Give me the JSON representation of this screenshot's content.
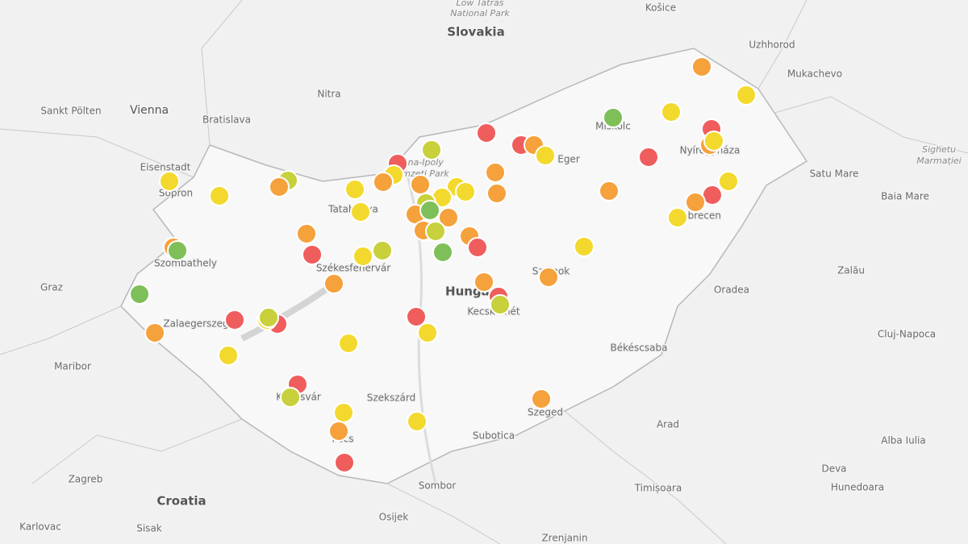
{
  "places": [
    {
      "name": "Low Tatras"
    },
    {
      "name": "National Park"
    },
    {
      "name": "Slovakia"
    },
    {
      "name": "Košice"
    },
    {
      "name": "Uzhhorod"
    },
    {
      "name": "Mukachevo"
    },
    {
      "name": "Nitra"
    },
    {
      "name": "Vienna"
    },
    {
      "name": "Sankt Pölten"
    },
    {
      "name": "Bratislava"
    },
    {
      "name": "Eisenstadt"
    },
    {
      "name": "Sopron"
    },
    {
      "name": "Tatabánya"
    },
    {
      "name": "Szombathely"
    },
    {
      "name": "Graz"
    },
    {
      "name": "Székesfehérvár"
    },
    {
      "name": "Hungary"
    },
    {
      "name": "Kecskemét"
    },
    {
      "name": "Szolnok"
    },
    {
      "name": "Eger"
    },
    {
      "name": "Miskolc"
    },
    {
      "name": "Nyíregyháza"
    },
    {
      "name": "Debrecen"
    },
    {
      "name": "Satu Mare"
    },
    {
      "name": "Baia Mare"
    },
    {
      "name": "Sighetu"
    },
    {
      "name": "Marmației"
    },
    {
      "name": "Oradea"
    },
    {
      "name": "Zalău"
    },
    {
      "name": "Cluj-Napoca"
    },
    {
      "name": "Zalaegerszeg"
    },
    {
      "name": "Maribor"
    },
    {
      "name": "Békéscsaba"
    },
    {
      "name": "Kaposvár"
    },
    {
      "name": "Szekszárd"
    },
    {
      "name": "Szeged"
    },
    {
      "name": "Arad"
    },
    {
      "name": "Alba Iulia"
    },
    {
      "name": "Deva"
    },
    {
      "name": "Hunedoara"
    },
    {
      "name": "Pécs"
    },
    {
      "name": "Subotica"
    },
    {
      "name": "Zagreb"
    },
    {
      "name": "Croatia"
    },
    {
      "name": "Sombor"
    },
    {
      "name": "Timișoara"
    },
    {
      "name": "Osijek"
    },
    {
      "name": "Karlovac"
    },
    {
      "name": "Sisak"
    },
    {
      "name": "Zrenjanin"
    },
    {
      "name": "Duna-Ipoly"
    },
    {
      "name": "Nemzeti Park"
    }
  ]
}
